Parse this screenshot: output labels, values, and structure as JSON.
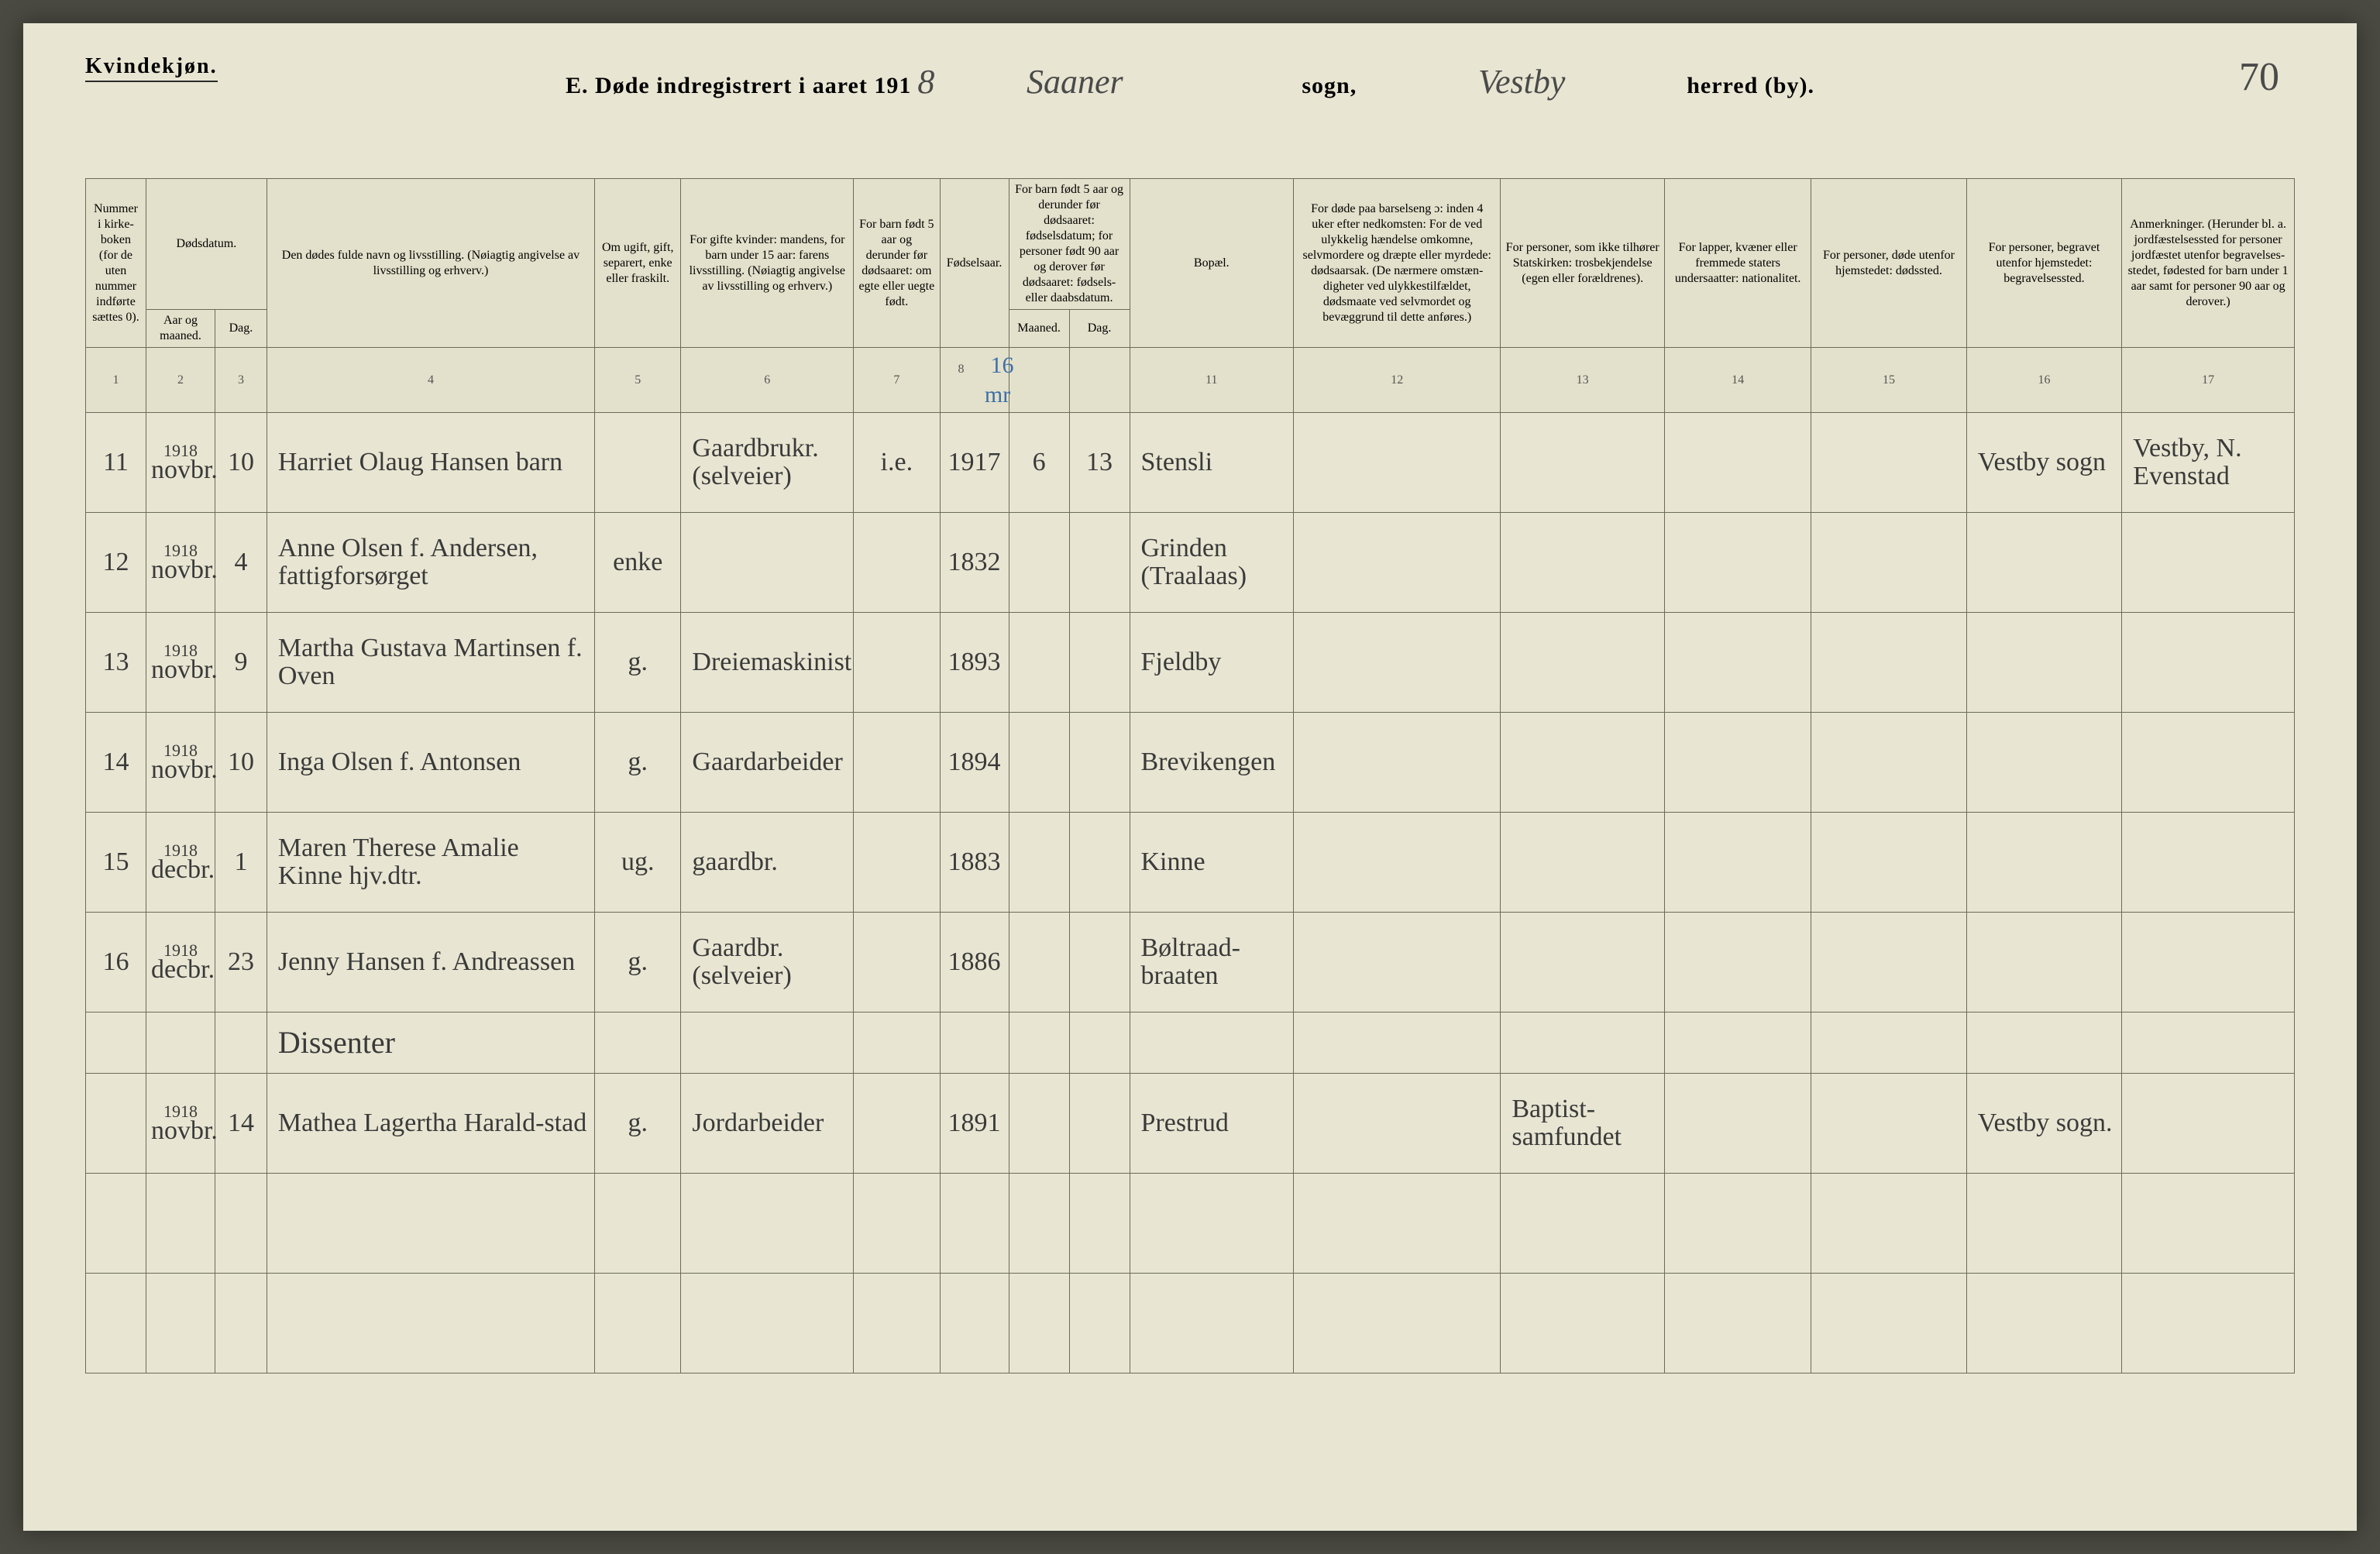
{
  "page": {
    "background_color": "#e8e6d2",
    "border_color": "#6b6b5a",
    "body_font": "Brush Script MT",
    "header_font": "Georgia"
  },
  "header": {
    "kvinde": "Kvindekjøn.",
    "title_prefix": "E.  Døde indregistrert i aaret 191",
    "year_suffix": "8",
    "sogn_hand": "Saaner",
    "sogn_label": "sogn,",
    "herred_hand": "Vestby",
    "herred_label": "herred (by).",
    "page_number": "70"
  },
  "columns": {
    "h1": "Nummer i kirke­boken (for de uten nummer indførte sættes 0).",
    "h2_top": "Dødsdatum.",
    "h2a": "Aar og maaned.",
    "h2b": "Dag.",
    "h4": "Den dødes fulde navn og livsstilling.\n(Nøiagtig angivelse av livsstilling og erhverv.)",
    "h5": "Om ugift, gift, separert, enke eller fraskilt.",
    "h6": "For gifte kvinder: mandens,\nfor barn under 15 aar: farens livsstilling.\n(Nøiagtig angivelse av livsstilling og erhverv.)",
    "h7": "For barn født 5 aar og derunder før døds­aaret: om egte eller uegte født.",
    "h8": "Fødsels­aar.",
    "h9_top": "For barn født 5 aar og der­under før dødsaaret: fødselsdatum; for personer født 90 aar og derover før dødsaaret: fødsels- eller daabsdatum.",
    "h9a": "Maaned.",
    "h9b": "Dag.",
    "h11": "Bopæl.",
    "h12": "For døde paa barselseng ɔ: inden 4 uker efter nedkomsten:\nFor de ved ulykkelig hændelse omkomne, selvmordere og dræpte eller myrdede: dødsaarsak.\n(De nærmere omstæn­digheter ved ulykkes­tilfældet, dødsmaate ved selvmordet og bevæggrund til dette anføres.)",
    "h13": "For personer, som ikke tilhører Statskirken: trosbekjendelse (egen eller forældrenes).",
    "h14": "For lapper, kvæner eller fremmede staters undersaatter: nationalitet.",
    "h15": "For personer, døde utenfor hjemstedet: dødssted.",
    "h16": "For personer, begravet utenfor hjemstedet: begravelsessted.",
    "h17": "Anmerkninger.\n(Herunder bl. a. jordfæstelsessted for personer jordfæstet utenfor begravelses­stedet, fødested for barn under 1 aar samt for personer 90 aar og derover.)"
  },
  "colnums": [
    "1",
    "2",
    "3",
    "4",
    "5",
    "6",
    "7",
    "8",
    "",
    "",
    "11",
    "12",
    "13",
    "14",
    "15",
    "16",
    "17"
  ],
  "blue_note": "16 mr",
  "rows": [
    {
      "n": "11",
      "year": "1918",
      "month": "novbr.",
      "day": "10",
      "name": "Harriet Olaug Hansen barn",
      "status": "",
      "occ": "Gaardbrukr. (selveier)",
      "legit": "i.e.",
      "byear": "1917",
      "bm": "6",
      "bd": "13",
      "place": "Stensli",
      "c12": "",
      "c13": "",
      "c14": "",
      "c15": "",
      "c16": "Vestby sogn",
      "c17": "Vestby, N. Evenstad"
    },
    {
      "n": "12",
      "year": "1918",
      "month": "novbr.",
      "day": "4",
      "name": "Anne Olsen f. Andersen, fattigforsørget",
      "status": "enke",
      "occ": "",
      "legit": "",
      "byear": "1832",
      "bm": "",
      "bd": "",
      "place": "Grinden (Traalaas)",
      "c12": "",
      "c13": "",
      "c14": "",
      "c15": "",
      "c16": "",
      "c17": ""
    },
    {
      "n": "13",
      "year": "1918",
      "month": "novbr.",
      "day": "9",
      "name": "Martha Gustava Martinsen f. Oven",
      "status": "g.",
      "occ": "Dreiemaskinist",
      "legit": "",
      "byear": "1893",
      "bm": "",
      "bd": "",
      "place": "Fjeldby",
      "c12": "",
      "c13": "",
      "c14": "",
      "c15": "",
      "c16": "",
      "c17": ""
    },
    {
      "n": "14",
      "year": "1918",
      "month": "novbr.",
      "day": "10",
      "name": "Inga Olsen f. Antonsen",
      "status": "g.",
      "occ": "Gaardarbeider",
      "legit": "",
      "byear": "1894",
      "bm": "",
      "bd": "",
      "place": "Brevikengen",
      "c12": "",
      "c13": "",
      "c14": "",
      "c15": "",
      "c16": "",
      "c17": ""
    },
    {
      "n": "15",
      "year": "1918",
      "month": "decbr.",
      "day": "1",
      "name": "Maren Therese Amalie Kinne hjv.dtr.",
      "status": "ug.",
      "occ": "gaardbr.",
      "legit": "",
      "byear": "1883",
      "bm": "",
      "bd": "",
      "place": "Kinne",
      "c12": "",
      "c13": "",
      "c14": "",
      "c15": "",
      "c16": "",
      "c17": ""
    },
    {
      "n": "16",
      "year": "1918",
      "month": "decbr.",
      "day": "23",
      "name": "Jenny Hansen f. Andreassen",
      "status": "g.",
      "occ": "Gaardbr. (selveier)",
      "legit": "",
      "byear": "1886",
      "bm": "",
      "bd": "",
      "place": "Bøltraad-braaten",
      "c12": "",
      "c13": "",
      "c14": "",
      "c15": "",
      "c16": "",
      "c17": ""
    }
  ],
  "section_label": "Dissenter",
  "rows2": [
    {
      "n": "",
      "year": "1918",
      "month": "novbr.",
      "day": "14",
      "name": "Mathea Lagertha Harald-stad",
      "status": "g.",
      "occ": "Jordarbeider",
      "legit": "",
      "byear": "1891",
      "bm": "",
      "bd": "",
      "place": "Prestrud",
      "c12": "",
      "c13": "Baptist-samfundet",
      "c14": "",
      "c15": "",
      "c16": "Vestby sogn.",
      "c17": ""
    }
  ],
  "empties": 2
}
